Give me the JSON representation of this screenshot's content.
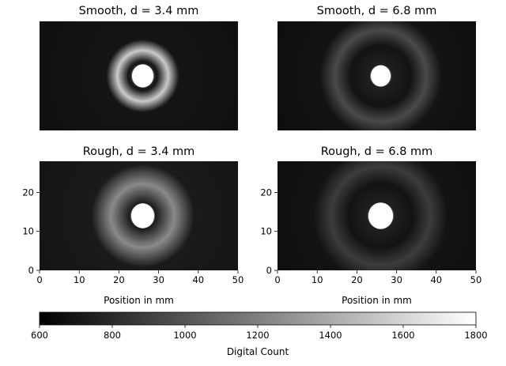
{
  "chart_data": {
    "type": "heatmap",
    "panels": [
      {
        "title": "Smooth, d = 3.4 mm",
        "surface": "Smooth",
        "d_mm": 3.4,
        "center_mm": [
          26,
          14
        ],
        "spot_radius_mm": 2.7,
        "ring_radius_mm": 6.4,
        "ring_width_mm": 2.5,
        "background": 700,
        "ring_level": 1550,
        "show_x_ticks": false,
        "show_y_ticks": false
      },
      {
        "title": "Smooth, d = 6.8 mm",
        "surface": "Smooth",
        "d_mm": 6.8,
        "center_mm": [
          26,
          14
        ],
        "spot_radius_mm": 2.5,
        "ring_radius_mm": 11.5,
        "ring_width_mm": 3.5,
        "background": 690,
        "ring_level": 950,
        "show_x_ticks": false,
        "show_y_ticks": false
      },
      {
        "title": "Rough, d = 3.4 mm",
        "surface": "Rough",
        "d_mm": 3.4,
        "center_mm": [
          26,
          14
        ],
        "spot_radius_mm": 2.9,
        "ring_radius_mm": 8.0,
        "ring_width_mm": 4.5,
        "background": 720,
        "ring_level": 1250,
        "show_x_ticks": true,
        "show_y_ticks": true
      },
      {
        "title": "Rough, d = 6.8 mm",
        "surface": "Rough",
        "d_mm": 6.8,
        "center_mm": [
          26,
          14
        ],
        "spot_radius_mm": 3.1,
        "ring_radius_mm": 12.5,
        "ring_width_mm": 4.0,
        "background": 690,
        "ring_level": 880,
        "show_x_ticks": true,
        "show_y_ticks": true
      }
    ],
    "xlabel": "Position in mm",
    "xlim": [
      0,
      50
    ],
    "ylim": [
      0,
      28
    ],
    "x_ticks": [
      "0",
      "10",
      "20",
      "30",
      "40",
      "50"
    ],
    "y_ticks": [
      "0",
      "10",
      "20"
    ],
    "colorbar": {
      "label": "Digital Count",
      "range": [
        600,
        1800
      ],
      "ticks": [
        "600",
        "800",
        "1000",
        "1200",
        "1400",
        "1600",
        "1800"
      ],
      "colormap": "gray"
    }
  }
}
